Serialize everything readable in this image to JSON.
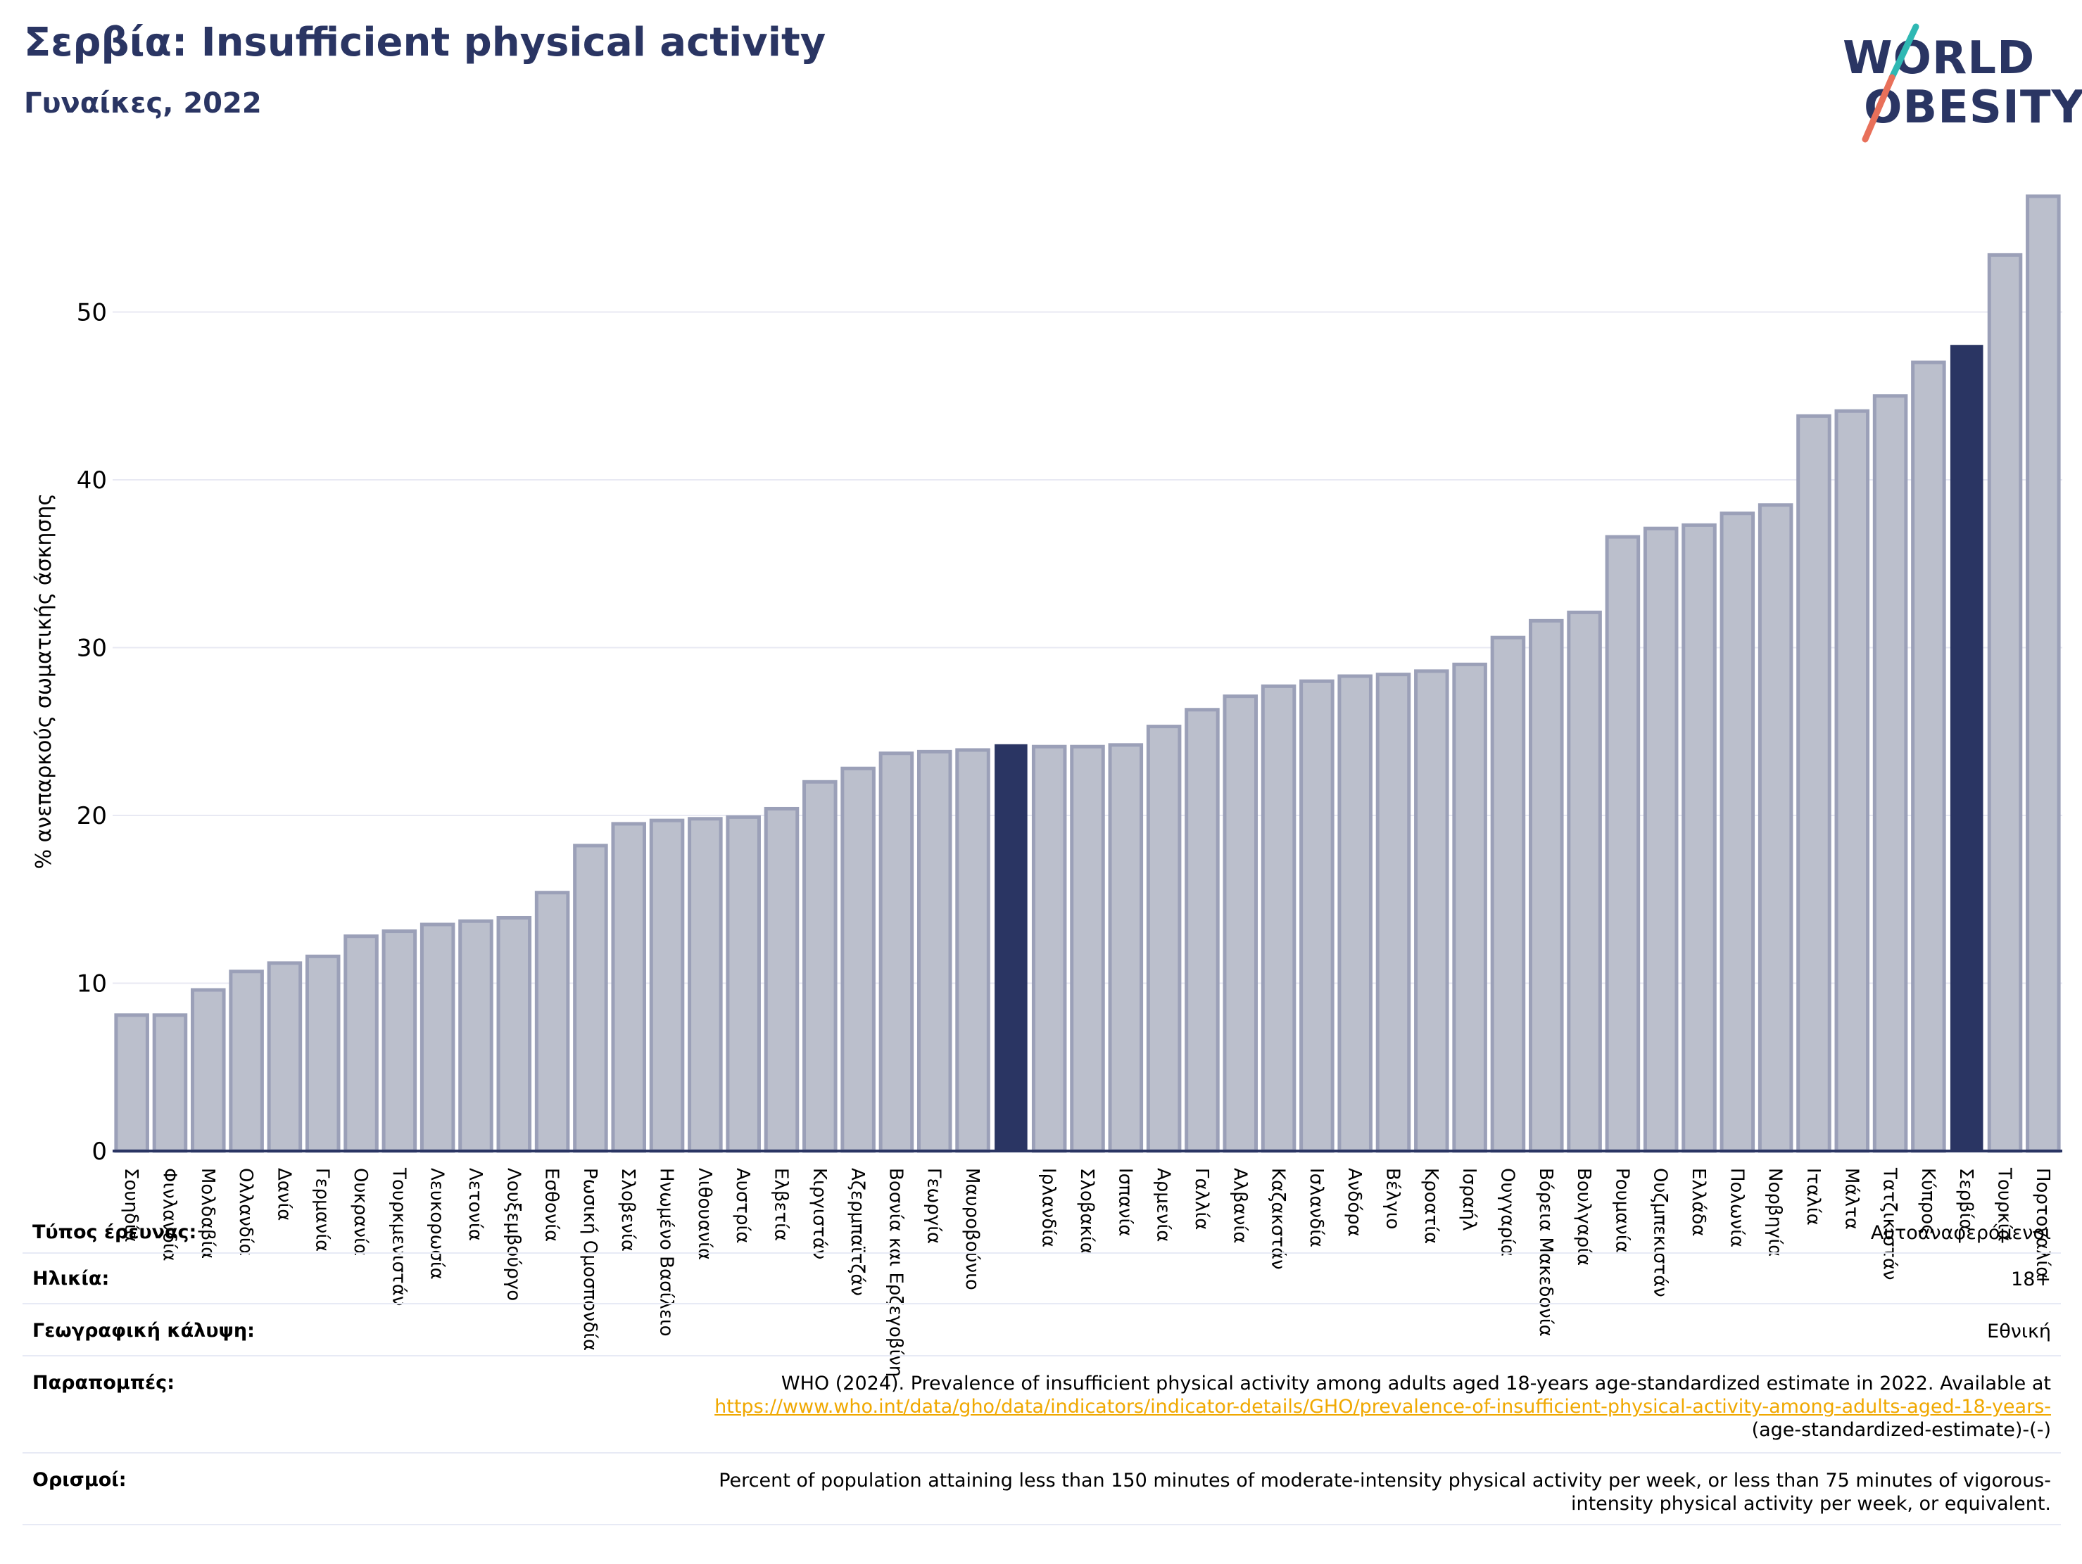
{
  "header": {
    "title": "Σερβία: Insufficient physical activity",
    "subtitle": "Γυναίκες, 2022"
  },
  "logo": {
    "line1": "WORLD",
    "line2": "OBESITY",
    "accent_colors": [
      "#2fb8b3",
      "#e8705a"
    ]
  },
  "colors": {
    "bar_fill": "#bbbfcc",
    "bar_stroke": "#9ba0b8",
    "highlight": "#2a3563",
    "grid": "#e8e9f3",
    "text_navy": "#2a3563",
    "link": "#f0a800"
  },
  "chart_data": {
    "type": "bar",
    "ylabel": "% ανεπαρκούς σωματικής άσκησης",
    "ylim": [
      0,
      58
    ],
    "yticks": [
      0,
      10,
      20,
      30,
      40,
      50
    ],
    "grid": true,
    "categories": [
      "Σουηδία",
      "Φινλανδία",
      "Μολδαβία",
      "Ολλανδία",
      "Δανία",
      "Γερμανία",
      "Ουκρανία",
      "Τουρκμενιστάν",
      "Λευκορωσία",
      "Λετονία",
      "Λουξεμβούργο",
      "Εσθονία",
      "Ρωσική Ομοσπονδία",
      "Σλοβενία",
      "Ηνωμένο Βασίλειο",
      "Λιθουανία",
      "Αυστρία",
      "Ελβετία",
      "Κιργιστάν",
      "Αζερμπαϊτζάν",
      "Βοσνία και Ερζεγοβίνη",
      "Γεωργία",
      "Μαυροβούνιο",
      "",
      "Ιρλανδία",
      "Σλοβακία",
      "Ισπανία",
      "Αρμενία",
      "Γαλλία",
      "Αλβανία",
      "Καζακστάν",
      "Ισλανδία",
      "Ανδόρα",
      "Βέλγιο",
      "Κροατία",
      "Ισραήλ",
      "Ουγγαρία",
      "Βόρεια Μακεδονία",
      "Βουλγαρία",
      "Ρουμανία",
      "Ουζμπεκιστάν",
      "Ελλάδα",
      "Πολωνία",
      "Νορβηγία",
      "Ιταλία",
      "Μάλτα",
      "Τατζικιστάν",
      "Κύπρος",
      "Σερβία",
      "Τουρκία",
      "Πορτογαλία"
    ],
    "values": [
      8.1,
      8.1,
      9.6,
      10.7,
      11.2,
      11.6,
      12.8,
      13.1,
      13.5,
      13.7,
      13.9,
      15.4,
      18.2,
      19.5,
      19.7,
      19.8,
      19.9,
      20.4,
      22.0,
      22.8,
      23.7,
      23.8,
      23.9,
      24.2,
      24.1,
      24.1,
      24.2,
      25.3,
      26.3,
      27.1,
      27.7,
      28.0,
      28.3,
      28.4,
      28.6,
      29.0,
      30.6,
      31.6,
      32.1,
      36.6,
      37.1,
      37.3,
      38.0,
      38.5,
      43.8,
      44.1,
      45.0,
      47.0,
      48.0,
      53.4,
      56.9
    ],
    "highlighted": [
      23,
      48
    ]
  },
  "info": {
    "survey_type_label": "Τύπος έρευνας:",
    "survey_type_value": "Αυτοαναφερόμενοι",
    "age_label": "Ηλικία:",
    "age_value": "18+",
    "coverage_label": "Γεωγραφική κάλυψη:",
    "coverage_value": "Εθνική",
    "references_label": "Παραπομπές:",
    "references_text": "WHO (2024). Prevalence of insufficient physical activity among adults aged 18-years age-standardized estimate in 2022. Available at",
    "references_link": "https://www.who.int/data/gho/data/indicators/indicator-details/GHO/prevalence-of-insufficient-physical-activity-among-adults-aged-18-years-",
    "references_tail": "(age-standardized-estimate)-(-)",
    "definitions_label": "Ορισμοί:",
    "definitions_line1": "Percent of population attaining less than 150 minutes of moderate-intensity physical activity per week, or less than 75 minutes of vigorous-",
    "definitions_line2": "intensity physical activity per week, or equivalent."
  }
}
